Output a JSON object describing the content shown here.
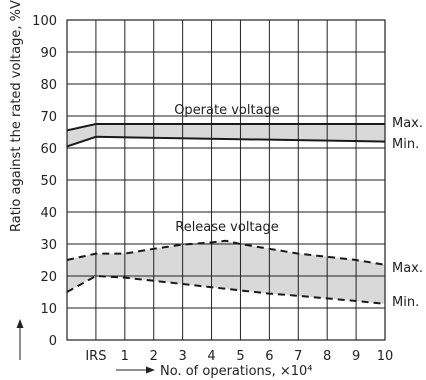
{
  "chart_data": {
    "type": "area",
    "xlabel": "No. of operations, ×10⁴",
    "ylabel": "Ratio against the rated voltage, %V",
    "x_tick_labels": [
      "IRS",
      "1",
      "2",
      "3",
      "4",
      "5",
      "6",
      "7",
      "8",
      "9",
      "10"
    ],
    "y_tick_labels": [
      "0",
      "10",
      "20",
      "30",
      "40",
      "50",
      "60",
      "70",
      "80",
      "90",
      "100"
    ],
    "xlim": [
      -1,
      10
    ],
    "ylim": [
      0,
      100
    ],
    "grid": true,
    "band_fill": "#d9d9d9",
    "line_color": "#1a1a1a",
    "series": [
      {
        "name": "Operate voltage",
        "band": true,
        "max_label": "Max.",
        "min_label": "Min.",
        "upper": {
          "style": "solid",
          "points": [
            [
              -1,
              65.5
            ],
            [
              0,
              67.5
            ],
            [
              10,
              67.5
            ]
          ]
        },
        "lower": {
          "style": "solid",
          "points": [
            [
              -1,
              60.5
            ],
            [
              0,
              63.5
            ],
            [
              10,
              62
            ]
          ]
        }
      },
      {
        "name": "Release voltage",
        "band": true,
        "max_label": "Max.",
        "min_label": "Min.",
        "upper": {
          "style": "dashed",
          "points": [
            [
              -1,
              25
            ],
            [
              0,
              27
            ],
            [
              1,
              27
            ],
            [
              2,
              28.5
            ],
            [
              3,
              29.8
            ],
            [
              4,
              30.5
            ],
            [
              4.5,
              31
            ],
            [
              5,
              30
            ],
            [
              6,
              28.5
            ],
            [
              7,
              27
            ],
            [
              8,
              26
            ],
            [
              9,
              25
            ],
            [
              10,
              23.5
            ]
          ]
        },
        "lower": {
          "style": "dashed",
          "points": [
            [
              -1,
              15
            ],
            [
              0,
              20
            ],
            [
              1,
              19.5
            ],
            [
              2,
              18.5
            ],
            [
              3,
              17.5
            ],
            [
              4,
              16.5
            ],
            [
              5,
              15.5
            ],
            [
              6,
              14.5
            ],
            [
              7,
              13.8
            ],
            [
              8,
              13
            ],
            [
              9,
              12.2
            ],
            [
              10,
              11.3
            ]
          ]
        }
      }
    ],
    "reference_line": 20
  }
}
